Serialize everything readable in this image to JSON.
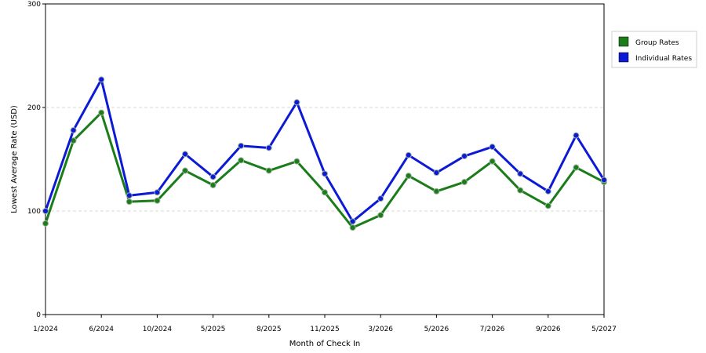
{
  "chart_data": {
    "type": "line",
    "xlabel": "Month of Check In",
    "ylabel": "Lowest Average Rate (USD)",
    "ylim": [
      0,
      300
    ],
    "yticks": [
      0,
      100,
      200,
      300
    ],
    "grid": "horizontal dashed",
    "legend_position": "top-right",
    "x_tick_labels": [
      "1/2024",
      "6/2024",
      "10/2024",
      "5/2025",
      "8/2025",
      "11/2025",
      "3/2026",
      "5/2026",
      "7/2026",
      "9/2026",
      "5/2027"
    ],
    "x_tick_indices": [
      0,
      2,
      4,
      6,
      8,
      10,
      12,
      14,
      16,
      18,
      20
    ],
    "series": [
      {
        "name": "Group Rates",
        "color": "#1a7d1a",
        "values": [
          88,
          168,
          195,
          109,
          110,
          139,
          125,
          149,
          139,
          148,
          118,
          84,
          96,
          134,
          119,
          128,
          148,
          120,
          105,
          142,
          128
        ]
      },
      {
        "name": "Individual Rates",
        "color": "#0c1ad6",
        "values": [
          100,
          178,
          227,
          115,
          118,
          155,
          133,
          163,
          161,
          205,
          136,
          90,
          112,
          154,
          137,
          153,
          162,
          136,
          119,
          173,
          130
        ]
      }
    ]
  }
}
